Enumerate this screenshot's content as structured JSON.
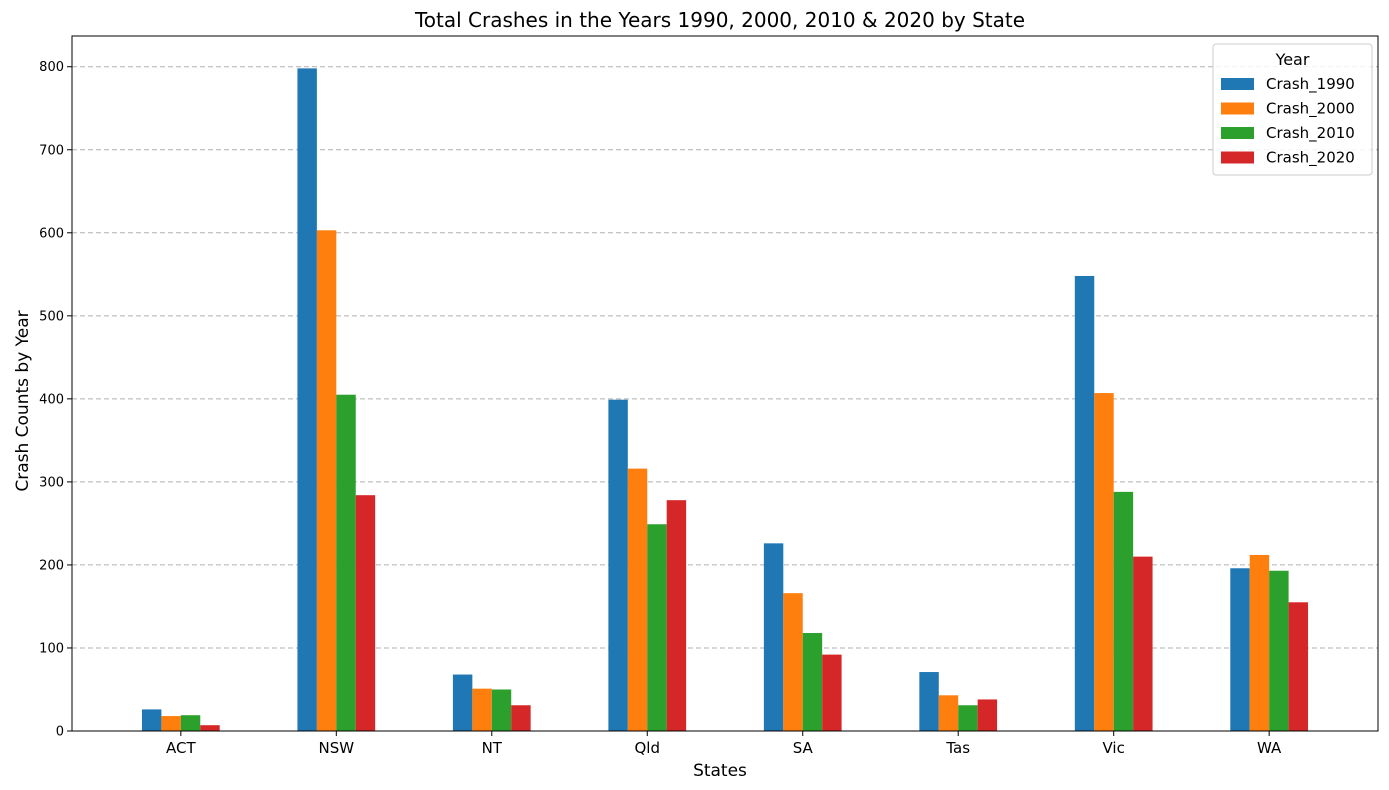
{
  "chart_data": {
    "type": "bar",
    "title": "Total Crashes in the Years 1990, 2000, 2010 & 2020 by State",
    "xlabel": "States",
    "ylabel": "Crash Counts by Year",
    "categories": [
      "ACT",
      "NSW",
      "NT",
      "Qld",
      "SA",
      "Tas",
      "Vic",
      "WA"
    ],
    "series": [
      {
        "name": "Crash_1990",
        "color": "#1f77b4",
        "values": [
          26,
          798,
          68,
          399,
          226,
          71,
          548,
          196
        ]
      },
      {
        "name": "Crash_2000",
        "color": "#ff7f0e",
        "values": [
          18,
          603,
          51,
          316,
          166,
          43,
          407,
          212
        ]
      },
      {
        "name": "Crash_2010",
        "color": "#2ca02c",
        "values": [
          19,
          405,
          50,
          249,
          118,
          31,
          288,
          193
        ]
      },
      {
        "name": "Crash_2020",
        "color": "#d62728",
        "values": [
          7,
          284,
          31,
          278,
          92,
          38,
          210,
          155
        ]
      }
    ],
    "ylim": [
      0,
      837
    ],
    "yticks": [
      0,
      100,
      200,
      300,
      400,
      500,
      600,
      700,
      800
    ],
    "grid": "y-dashed",
    "legend": {
      "title": "Year",
      "position": "top-right"
    }
  }
}
